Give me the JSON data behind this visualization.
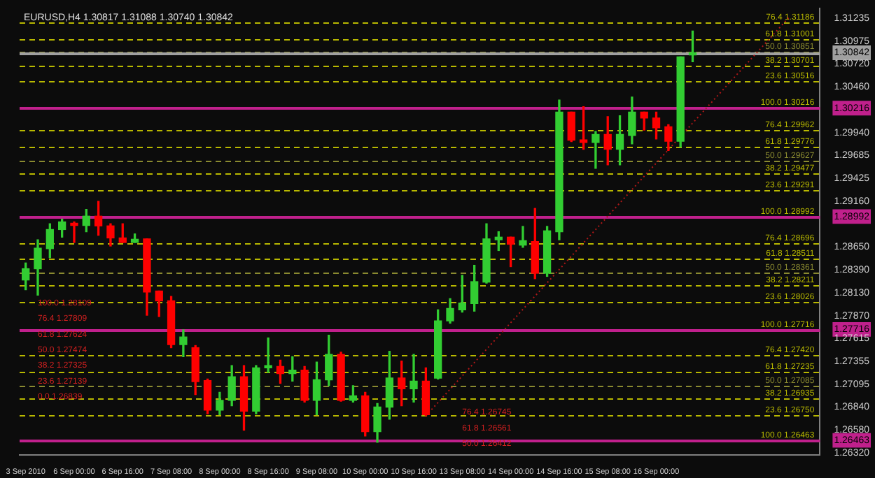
{
  "chart_data": {
    "type": "candlestick",
    "title": "EURUSD,H4 1.30817 1.31088 1.30740 1.30842",
    "categories": [
      "3 Sep 2010",
      null,
      null,
      null,
      "6 Sep 00:00",
      null,
      null,
      null,
      "6 Sep 16:00",
      null,
      null,
      null,
      "7 Sep 08:00",
      null,
      null,
      null,
      "8 Sep 00:00",
      null,
      null,
      null,
      "8 Sep 16:00",
      null,
      null,
      null,
      "9 Sep 08:00",
      null,
      null,
      null,
      "10 Sep 00:00",
      null,
      null,
      null,
      "10 Sep 16:00",
      null,
      null,
      null,
      "13 Sep 08:00",
      null,
      null,
      null,
      "14 Sep 00:00",
      null,
      null,
      null,
      "14 Sep 16:00",
      null,
      null,
      null,
      "15 Sep 08:00",
      null,
      null,
      null,
      "16 Sep 00:00",
      null,
      null,
      null,
      null,
      null,
      null,
      null,
      null,
      null,
      null,
      null,
      null,
      null
    ],
    "ohlc": [
      [
        1.28275,
        1.28467,
        1.28165,
        1.28402
      ],
      [
        1.28402,
        1.28729,
        1.28104,
        1.28634
      ],
      [
        1.28629,
        1.2891,
        1.28528,
        1.28845
      ],
      [
        1.28845,
        1.28962,
        1.28759,
        1.28931
      ],
      [
        1.28916,
        1.28931,
        1.28699,
        1.28891
      ],
      [
        1.28891,
        1.29072,
        1.2882,
        1.28996
      ],
      [
        1.28996,
        1.29163,
        1.2878,
        1.28886
      ],
      [
        1.28886,
        1.2891,
        1.28659,
        1.2875
      ],
      [
        1.2875,
        1.2891,
        1.28699,
        1.28699
      ],
      [
        1.28699,
        1.28795,
        1.28699,
        1.28735
      ],
      [
        1.28739,
        1.28739,
        1.27877,
        1.28139
      ],
      [
        1.2815,
        1.2815,
        1.27862,
        1.28039
      ],
      [
        1.28039,
        1.28089,
        1.2751,
        1.27545
      ],
      [
        1.27545,
        1.27711,
        1.27409,
        1.27631
      ],
      [
        1.2751,
        1.27534,
        1.26981,
        1.27126
      ],
      [
        1.27137,
        1.27156,
        1.26763,
        1.26804
      ],
      [
        1.26804,
        1.27005,
        1.26754,
        1.26915
      ],
      [
        1.26915,
        1.27308,
        1.26854,
        1.27182
      ],
      [
        1.27182,
        1.27308,
        1.26577,
        1.26793
      ],
      [
        1.26793,
        1.27308,
        1.26763,
        1.27283
      ],
      [
        1.27283,
        1.2762,
        1.27232,
        1.27308
      ],
      [
        1.27298,
        1.27368,
        1.27106,
        1.27217
      ],
      [
        1.27217,
        1.27409,
        1.27132,
        1.27257
      ],
      [
        1.27257,
        1.27298,
        1.26895,
        1.26915
      ],
      [
        1.26915,
        1.27348,
        1.26754,
        1.27147
      ],
      [
        1.27147,
        1.27651,
        1.27081,
        1.27434
      ],
      [
        1.27434,
        1.27459,
        1.26905,
        1.26915
      ],
      [
        1.26915,
        1.27081,
        1.26895,
        1.26966
      ],
      [
        1.26966,
        1.27005,
        1.26512,
        1.26562
      ],
      [
        1.26562,
        1.2688,
        1.26441,
        1.26839
      ],
      [
        1.26839,
        1.27469,
        1.26703,
        1.27167
      ],
      [
        1.27167,
        1.27359,
        1.26854,
        1.27046
      ],
      [
        1.27046,
        1.27434,
        1.26895,
        1.27132
      ],
      [
        1.27132,
        1.27283,
        1.26744,
        1.26754
      ],
      [
        1.27167,
        1.27938,
        1.27156,
        1.27813
      ],
      [
        1.27813,
        1.28064,
        1.27787,
        1.27953
      ],
      [
        1.27938,
        1.28327,
        1.27912,
        1.28014
      ],
      [
        1.28009,
        1.28441,
        1.27923,
        1.28256
      ],
      [
        1.28251,
        1.2891,
        1.2824,
        1.28739
      ],
      [
        1.28729,
        1.2882,
        1.28608,
        1.28759
      ],
      [
        1.28759,
        1.28759,
        1.28426,
        1.28679
      ],
      [
        1.28669,
        1.2888,
        1.28644,
        1.28719
      ],
      [
        1.28709,
        1.29083,
        1.2829,
        1.28351
      ],
      [
        1.28351,
        1.2888,
        1.28316,
        1.2883
      ],
      [
        1.2882,
        1.30307,
        1.28729,
        1.30171
      ],
      [
        1.30171,
        1.30171,
        1.29839,
        1.29854
      ],
      [
        1.29858,
        1.30232,
        1.29752,
        1.29828
      ],
      [
        1.29828,
        1.29953,
        1.29536,
        1.29919
      ],
      [
        1.29919,
        1.3012,
        1.29576,
        1.29752
      ],
      [
        1.29752,
        1.3013,
        1.29576,
        1.29919
      ],
      [
        1.29908,
        1.30342,
        1.29813,
        1.30171
      ],
      [
        1.30171,
        1.30171,
        1.29969,
        1.30105
      ],
      [
        1.30105,
        1.30171,
        1.29869,
        1.29994
      ],
      [
        1.30005,
        1.30029,
        1.29737,
        1.29843
      ],
      [
        1.29843,
        1.30796,
        1.29778,
        1.30796
      ],
      [
        1.30817,
        1.31088,
        1.3074,
        1.30842
      ],
      null,
      null,
      null,
      null,
      null,
      null,
      null,
      null,
      null,
      null
    ],
    "colors": [
      "#32cd32",
      "#32cd32",
      "#32cd32",
      "#32cd32",
      "#ff0000",
      "#32cd32",
      "#ff0000",
      "#ff0000",
      "#ff0000",
      "#32cd32",
      "#ff0000",
      "#ff0000",
      "#ff0000",
      "#32cd32",
      "#ff0000",
      "#ff0000",
      "#32cd32",
      "#32cd32",
      "#ff0000",
      "#32cd32",
      "#32cd32",
      "#ff0000",
      "#32cd32",
      "#ff0000",
      "#32cd32",
      "#32cd32",
      "#ff0000",
      "#32cd32",
      "#ff0000",
      "#32cd32",
      "#32cd32",
      "#ff0000",
      "#32cd32",
      "#ff0000",
      "#32cd32",
      "#32cd32",
      "#32cd32",
      "#32cd32",
      "#32cd32",
      "#32cd32",
      "#ff0000",
      "#32cd32",
      "#ff0000",
      "#32cd32",
      "#32cd32",
      "#ff0000",
      "#ff0000",
      "#32cd32",
      "#ff0000",
      "#32cd32",
      "#32cd32",
      "#ff0000",
      "#ff0000",
      "#ff0000",
      "#32cd32",
      "#32cd32",
      null,
      null,
      null,
      null,
      null,
      null,
      null,
      null,
      null,
      null
    ],
    "series": [
      {
        "type": "line",
        "color": "#b01818",
        "line_style": "dotted",
        "values": [
          null,
          null,
          null,
          null,
          null,
          null,
          null,
          null,
          null,
          null,
          null,
          null,
          null,
          null,
          null,
          null,
          null,
          null,
          null,
          null,
          null,
          null,
          null,
          null,
          null,
          null,
          null,
          null,
          null,
          null,
          null,
          null,
          null,
          1.2674,
          null,
          null,
          null,
          null,
          null,
          null,
          null,
          null,
          null,
          null,
          null,
          null,
          null,
          null,
          null,
          null,
          null,
          null,
          null,
          null,
          null,
          null,
          null,
          null,
          null,
          null,
          null,
          null,
          null,
          1.3125,
          null,
          null
        ]
      }
    ],
    "ylim": [
      1.263,
      1.3134
    ],
    "yticks": [
      1.31235,
      1.30975,
      {
        "value": 1.30842,
        "label": "1.30842"
      },
      {
        "value": 1.3072,
        "label": "1.30720"
      },
      {
        "value": 1.3046,
        "label": "1.30460"
      },
      {
        "value": 1.30216,
        "label": "1.30216"
      },
      {
        "value": 1.2994,
        "label": "1.29940"
      },
      1.29685,
      1.29425,
      {
        "value": 1.2916,
        "label": "1.29160"
      },
      {
        "value": 1.28992,
        "label": "1.28992"
      },
      {
        "value": 1.2865,
        "label": "1.28650"
      },
      {
        "value": 1.2839,
        "label": "1.28390"
      },
      {
        "value": 1.2813,
        "label": "1.28130"
      },
      {
        "value": 1.2787,
        "label": "1.27870"
      },
      {
        "value": 1.27716,
        "label": "1.27716"
      },
      1.27615,
      1.27355,
      1.27095,
      {
        "value": 1.2684,
        "label": "1.26840"
      },
      {
        "value": 1.2658,
        "label": "1.26580"
      },
      {
        "value": 1.26463,
        "label": "1.26463"
      },
      {
        "value": 1.2632,
        "label": "1.26320"
      }
    ],
    "ref_lines": [
      {
        "axis": "y",
        "value": 1.31186,
        "label": "76.4 1.31186",
        "color": "#b8b800",
        "line_style": "dashed"
      },
      {
        "axis": "y",
        "value": 1.31001,
        "label": "61.8 1.31001",
        "color": "#b8b800",
        "line_style": "dashed"
      },
      {
        "axis": "y",
        "value": 1.30851,
        "label": "50.0 1.30851",
        "color": "#8a8a30",
        "line_style": "dashed"
      },
      {
        "axis": "y",
        "value": 1.30701,
        "label": "38.2 1.30701",
        "color": "#b8b800",
        "line_style": "dashed"
      },
      {
        "axis": "y",
        "value": 1.30516,
        "label": "23.6 1.30516",
        "color": "#b8b800",
        "line_style": "dashed"
      },
      {
        "axis": "y",
        "value": 1.29962,
        "label": "76.4 1.29962",
        "color": "#b8b800",
        "line_style": "dashed"
      },
      {
        "axis": "y",
        "value": 1.29776,
        "label": "61.8 1.29776",
        "color": "#b8b800",
        "line_style": "dashed"
      },
      {
        "axis": "y",
        "value": 1.29627,
        "label": "50.0 1.29627",
        "color": "#8a8a30",
        "line_style": "dashed"
      },
      {
        "axis": "y",
        "value": 1.29477,
        "label": "38.2 1.29477",
        "color": "#b8b800",
        "line_style": "dashed"
      },
      {
        "axis": "y",
        "value": 1.29291,
        "label": "23.6 1.29291",
        "color": "#b8b800",
        "line_style": "dashed"
      },
      {
        "axis": "y",
        "value": 1.28696,
        "label": "76.4 1.28696",
        "color": "#b8b800",
        "line_style": "dashed"
      },
      {
        "axis": "y",
        "value": 1.28511,
        "label": "61.8 1.28511",
        "color": "#b8b800",
        "line_style": "dashed"
      },
      {
        "axis": "y",
        "value": 1.28361,
        "label": "50.0 1.28361",
        "color": "#8a8a30",
        "line_style": "dashed"
      },
      {
        "axis": "y",
        "value": 1.28211,
        "label": "38.2 1.28211",
        "color": "#b8b800",
        "line_style": "dashed"
      },
      {
        "axis": "y",
        "value": 1.28026,
        "label": "23.6 1.28026",
        "color": "#b8b800",
        "line_style": "dashed"
      },
      {
        "axis": "y",
        "value": 1.2742,
        "label": "76.4 1.27420",
        "color": "#b8b800",
        "line_style": "dashed"
      },
      {
        "axis": "y",
        "value": 1.27235,
        "label": "61.8 1.27235",
        "color": "#b8b800",
        "line_style": "dashed"
      },
      {
        "axis": "y",
        "value": 1.27085,
        "label": "50.0 1.27085",
        "color": "#8a8a30",
        "line_style": "dashed"
      },
      {
        "axis": "y",
        "value": 1.26935,
        "label": "38.2 1.26935",
        "color": "#b8b800",
        "line_style": "dashed"
      },
      {
        "axis": "y",
        "value": 1.2675,
        "label": "23.6 1.26750",
        "color": "#b8b800",
        "line_style": "dashed"
      },
      {
        "axis": "y",
        "value": 1.30216,
        "label": "100.0 1.30216",
        "color": "#c0208c",
        "line_style": "solid"
      },
      {
        "axis": "y",
        "value": 1.28992,
        "label": "100.0 1.28992",
        "color": "#c0208c",
        "line_style": "solid"
      },
      {
        "axis": "y",
        "value": 1.27716,
        "label": "100.0 1.27716",
        "color": "#c0208c",
        "line_style": "solid"
      },
      {
        "axis": "y",
        "value": 1.26463,
        "label": "100.0 1.26463",
        "color": "#c0208c",
        "line_style": "solid"
      },
      {
        "axis": "y",
        "value": 1.30842,
        "color": "#a0a0a0",
        "line_style": "solid"
      }
    ],
    "annotations": [
      "100.0 1.28109",
      "76.4 1.27809",
      "61.8 1.27624",
      "50.0 1.27474",
      "38.2 1.27325",
      "23.6 1.27139",
      "0.0 1.26839",
      "76.4 1.26745",
      "61.8 1.26561",
      "50.0 1.26412"
    ],
    "legend": false
  }
}
